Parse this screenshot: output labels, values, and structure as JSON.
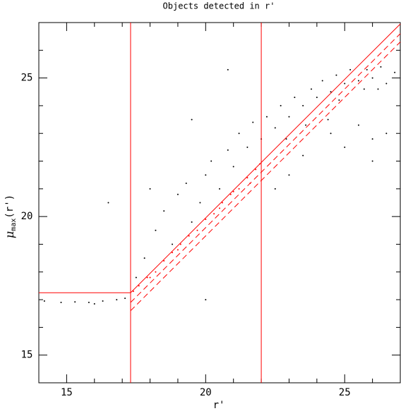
{
  "chart_data": {
    "type": "scatter",
    "title": "Objects detected in r'",
    "xlabel": "r'",
    "ylabel": [
      "μ",
      "max",
      "(r')"
    ],
    "xlim": [
      14,
      27
    ],
    "ylim": [
      14,
      27
    ],
    "xticks": [
      15,
      20,
      25
    ],
    "yticks": [
      15,
      20,
      25
    ],
    "xminorticks": [
      14,
      16,
      17,
      18,
      19,
      21,
      22,
      23,
      24,
      26,
      27
    ],
    "yminorticks": [
      14,
      16,
      17,
      18,
      19,
      21,
      22,
      23,
      24,
      26,
      27
    ],
    "series": [
      {
        "color": "#000000",
        "x": [
          14.2,
          14.8,
          15.3,
          15.8,
          16.3,
          16.8,
          17.1,
          16.0,
          17.8,
          18.2,
          18.5,
          18.8,
          19.0,
          19.3,
          19.5,
          19.8,
          20.0,
          20.2,
          20.5,
          20.8,
          21.0,
          21.2,
          21.5,
          21.7,
          22.0,
          22.2,
          22.5,
          22.7,
          23.0,
          23.2,
          23.5,
          23.8,
          24.0,
          24.2,
          24.5,
          24.7,
          25.0,
          25.2,
          25.5,
          25.8,
          26.0,
          26.3,
          26.5,
          26.8,
          25.7,
          24.8,
          26.2,
          23.6,
          22.9,
          24.4,
          24.5,
          25.5,
          26.0,
          23.5,
          25.0,
          26.5,
          22.5,
          23.0,
          16.5,
          18.0,
          19.5,
          20.8,
          17.5,
          20.0,
          26.0
        ],
        "y": [
          16.95,
          16.9,
          16.92,
          16.9,
          16.95,
          17.0,
          17.05,
          16.85,
          18.5,
          19.5,
          20.2,
          19.0,
          20.8,
          21.2,
          19.8,
          20.5,
          21.5,
          22.0,
          21.0,
          22.4,
          21.8,
          23.0,
          22.5,
          23.4,
          22.8,
          23.6,
          23.2,
          24.0,
          23.6,
          24.3,
          24.0,
          24.6,
          24.3,
          24.9,
          24.5,
          25.1,
          24.8,
          25.3,
          24.9,
          25.3,
          25.0,
          25.4,
          24.8,
          25.2,
          24.6,
          24.2,
          24.6,
          23.3,
          22.8,
          23.5,
          23.0,
          23.3,
          22.8,
          22.2,
          22.5,
          23.0,
          21.0,
          21.5,
          20.5,
          21.0,
          23.5,
          25.3,
          17.8,
          17.0,
          22.0
        ]
      },
      {
        "color": "#ff0000",
        "x": [
          17.4,
          17.6,
          17.9,
          18.2,
          18.5,
          18.8,
          19.1,
          19.4,
          19.7,
          20.0,
          20.3,
          20.6,
          20.9,
          21.2,
          21.5,
          21.8,
          21.95,
          19.0,
          20.5,
          21.0,
          18.0,
          21.6
        ],
        "y": [
          17.3,
          17.5,
          17.8,
          18.0,
          18.4,
          18.7,
          19.0,
          19.3,
          19.5,
          19.9,
          20.1,
          20.5,
          20.8,
          21.0,
          21.4,
          21.7,
          21.9,
          18.8,
          20.3,
          20.9,
          17.8,
          21.2
        ]
      }
    ],
    "lines": [
      {
        "color": "#ff0000",
        "dashed": false,
        "x": [
          17.3,
          17.3
        ],
        "y": [
          14,
          27
        ]
      },
      {
        "color": "#ff0000",
        "dashed": false,
        "x": [
          22,
          22
        ],
        "y": [
          14,
          27
        ]
      },
      {
        "color": "#ff0000",
        "dashed": false,
        "x": [
          14,
          17.3,
          27
        ],
        "y": [
          17.25,
          17.25,
          26.95
        ]
      },
      {
        "color": "#ff0000",
        "dashed": true,
        "x": [
          17.3,
          27
        ],
        "y": [
          16.9,
          26.6
        ]
      },
      {
        "color": "#ff0000",
        "dashed": true,
        "x": [
          17.3,
          27
        ],
        "y": [
          16.6,
          26.3
        ]
      }
    ]
  }
}
